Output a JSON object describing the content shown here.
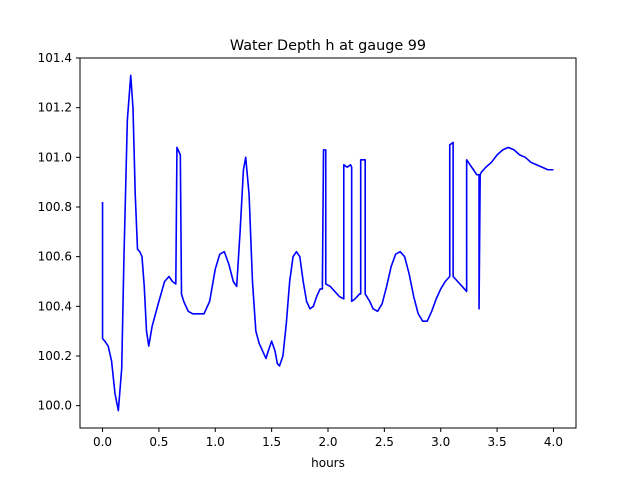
{
  "chart_data": {
    "type": "line",
    "title": "Water Depth h at gauge 99",
    "xlabel": "hours",
    "ylabel": "",
    "xlim": [
      -0.2,
      4.2
    ],
    "ylim": [
      99.91,
      101.4
    ],
    "xticks": [
      0.0,
      0.5,
      1.0,
      1.5,
      2.0,
      2.5,
      3.0,
      3.5,
      4.0
    ],
    "xtick_labels": [
      "0.0",
      "0.5",
      "1.0",
      "1.5",
      "2.0",
      "2.5",
      "3.0",
      "3.5",
      "4.0"
    ],
    "yticks": [
      100.0,
      100.2,
      100.4,
      100.6,
      100.8,
      101.0,
      101.2,
      101.4
    ],
    "ytick_labels": [
      "100.0",
      "100.2",
      "100.4",
      "100.6",
      "100.8",
      "101.0",
      "101.2",
      "101.4"
    ],
    "grid": false,
    "series": [
      {
        "color": "#0000ff",
        "x": [
          0.0,
          0.0,
          0.02,
          0.05,
          0.08,
          0.11,
          0.14,
          0.17,
          0.19,
          0.22,
          0.25,
          0.27,
          0.29,
          0.31,
          0.33,
          0.35,
          0.37,
          0.39,
          0.41,
          0.44,
          0.47,
          0.5,
          0.55,
          0.59,
          0.62,
          0.65,
          0.66,
          0.67,
          0.69,
          0.7,
          0.7,
          0.72,
          0.76,
          0.8,
          0.85,
          0.9,
          0.95,
          1.0,
          1.04,
          1.08,
          1.12,
          1.16,
          1.19,
          1.22,
          1.25,
          1.27,
          1.3,
          1.33,
          1.36,
          1.39,
          1.42,
          1.45,
          1.47,
          1.5,
          1.53,
          1.55,
          1.57,
          1.6,
          1.63,
          1.66,
          1.69,
          1.72,
          1.75,
          1.78,
          1.81,
          1.84,
          1.87,
          1.9,
          1.93,
          1.95,
          1.96,
          1.96,
          1.98,
          1.98,
          2.02,
          2.06,
          2.1,
          2.14,
          2.14,
          2.17,
          2.2,
          2.21,
          2.21,
          2.24,
          2.28,
          2.29,
          2.29,
          2.33,
          2.33,
          2.37,
          2.4,
          2.44,
          2.48,
          2.52,
          2.56,
          2.6,
          2.64,
          2.68,
          2.72,
          2.76,
          2.8,
          2.84,
          2.88,
          2.92,
          2.96,
          3.0,
          3.04,
          3.08,
          3.08,
          3.11,
          3.11,
          3.15,
          3.19,
          3.23,
          3.23,
          3.26,
          3.29,
          3.32,
          3.33,
          3.34,
          3.34,
          3.35,
          3.36,
          3.4,
          3.45,
          3.5,
          3.55,
          3.6,
          3.65,
          3.7,
          3.75,
          3.8,
          3.85,
          3.9,
          3.95,
          4.0
        ],
        "values": [
          100.82,
          100.27,
          100.26,
          100.24,
          100.18,
          100.05,
          99.98,
          100.15,
          100.6,
          101.15,
          101.33,
          101.2,
          100.85,
          100.63,
          100.62,
          100.6,
          100.48,
          100.3,
          100.24,
          100.32,
          100.37,
          100.42,
          100.5,
          100.52,
          100.5,
          100.49,
          101.04,
          101.03,
          101.01,
          100.47,
          100.45,
          100.42,
          100.38,
          100.37,
          100.37,
          100.37,
          100.42,
          100.55,
          100.61,
          100.62,
          100.57,
          100.5,
          100.48,
          100.7,
          100.95,
          101.0,
          100.85,
          100.5,
          100.3,
          100.25,
          100.22,
          100.19,
          100.22,
          100.26,
          100.22,
          100.17,
          100.16,
          100.2,
          100.33,
          100.5,
          100.6,
          100.62,
          100.6,
          100.5,
          100.42,
          100.39,
          100.4,
          100.44,
          100.47,
          100.47,
          101.02,
          101.03,
          101.03,
          100.49,
          100.48,
          100.46,
          100.44,
          100.43,
          100.97,
          100.96,
          100.97,
          100.96,
          100.42,
          100.43,
          100.45,
          100.45,
          100.99,
          100.99,
          100.45,
          100.42,
          100.39,
          100.38,
          100.41,
          100.48,
          100.56,
          100.61,
          100.62,
          100.6,
          100.53,
          100.44,
          100.37,
          100.34,
          100.34,
          100.38,
          100.43,
          100.47,
          100.5,
          100.52,
          101.05,
          101.06,
          100.52,
          100.5,
          100.48,
          100.46,
          100.99,
          100.97,
          100.95,
          100.93,
          100.93,
          100.93,
          100.39,
          100.93,
          100.94,
          100.96,
          100.98,
          101.01,
          101.03,
          101.04,
          101.03,
          101.01,
          101.0,
          100.98,
          100.97,
          100.96,
          100.95,
          100.95
        ]
      }
    ]
  }
}
